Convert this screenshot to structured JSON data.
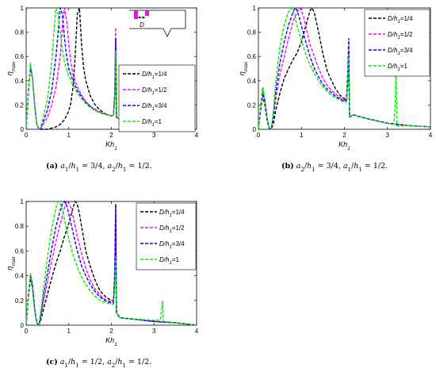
{
  "chart_data": [
    {
      "type": "line",
      "panel_label": "(a)",
      "caption": "a1/h1 = 3/4, a2/h1 = 1/2.",
      "xlabel": "Kh1",
      "ylabel": "ηmax",
      "xlim": [
        0,
        4
      ],
      "ylim": [
        0,
        1
      ],
      "xticks": [
        "0",
        "1",
        "2",
        "3",
        "4"
      ],
      "yticks": [
        "0",
        "0.2",
        "0.4",
        "0.6",
        "0.8",
        "1"
      ],
      "legend_position": "right",
      "inset": {
        "label": "D",
        "shown": true
      },
      "series": [
        {
          "name": "D/h1=1/4",
          "color": "#000000",
          "x": [
            0,
            0.05,
            0.1,
            0.15,
            0.2,
            0.25,
            0.3,
            0.35,
            0.4,
            0.5,
            0.6,
            0.7,
            0.8,
            0.9,
            1.0,
            1.05,
            1.1,
            1.15,
            1.2,
            1.25,
            1.3,
            1.35,
            1.4,
            1.5,
            1.6,
            1.7,
            1.8,
            1.9,
            2.0,
            2.05,
            2.08,
            2.1,
            2.12,
            2.2,
            2.5,
            3.0,
            3.15,
            3.2,
            3.25,
            3.5,
            4.0
          ],
          "y": [
            0,
            0.3,
            0.5,
            0.42,
            0.2,
            0.04,
            0.0,
            0.0,
            0.0,
            0.0,
            0.01,
            0.02,
            0.04,
            0.08,
            0.15,
            0.22,
            0.35,
            0.6,
            0.95,
            1.0,
            0.7,
            0.5,
            0.4,
            0.28,
            0.21,
            0.17,
            0.14,
            0.12,
            0.11,
            0.12,
            0.25,
            0.74,
            0.1,
            0.08,
            0.06,
            0.04,
            0.04,
            0.06,
            0.03,
            0.02,
            0.0
          ]
        },
        {
          "name": "D/h1=1/2",
          "color": "#ff00ff",
          "x": [
            0,
            0.05,
            0.1,
            0.15,
            0.2,
            0.25,
            0.3,
            0.35,
            0.4,
            0.5,
            0.6,
            0.7,
            0.8,
            0.85,
            0.9,
            0.95,
            1.0,
            1.05,
            1.1,
            1.2,
            1.3,
            1.4,
            1.5,
            1.6,
            1.7,
            1.8,
            1.9,
            2.0,
            2.05,
            2.08,
            2.1,
            2.12,
            2.2,
            2.5,
            3.0,
            3.15,
            3.2,
            3.25,
            3.5,
            4.0
          ],
          "y": [
            0,
            0.3,
            0.52,
            0.42,
            0.2,
            0.04,
            0.0,
            0.01,
            0.04,
            0.1,
            0.2,
            0.35,
            0.6,
            0.85,
            1.0,
            0.9,
            0.7,
            0.55,
            0.45,
            0.35,
            0.28,
            0.23,
            0.19,
            0.17,
            0.15,
            0.13,
            0.12,
            0.11,
            0.12,
            0.3,
            0.84,
            0.1,
            0.08,
            0.06,
            0.04,
            0.04,
            0.08,
            0.03,
            0.02,
            0.0
          ]
        },
        {
          "name": "D/h1=3/4",
          "color": "#0000ff",
          "x": [
            0,
            0.05,
            0.1,
            0.15,
            0.2,
            0.25,
            0.3,
            0.35,
            0.4,
            0.5,
            0.6,
            0.7,
            0.75,
            0.8,
            0.85,
            0.9,
            0.95,
            1.0,
            1.1,
            1.2,
            1.3,
            1.4,
            1.5,
            1.6,
            1.7,
            1.8,
            1.9,
            2.0,
            2.05,
            2.08,
            2.1,
            2.12,
            2.2,
            2.5,
            3.0,
            3.15,
            3.2,
            3.25,
            3.5,
            4.0
          ],
          "y": [
            0,
            0.3,
            0.53,
            0.42,
            0.2,
            0.04,
            0.0,
            0.02,
            0.06,
            0.16,
            0.32,
            0.6,
            0.8,
            1.0,
            0.95,
            0.75,
            0.6,
            0.5,
            0.4,
            0.32,
            0.27,
            0.22,
            0.19,
            0.16,
            0.14,
            0.13,
            0.12,
            0.11,
            0.12,
            0.3,
            0.75,
            0.1,
            0.08,
            0.06,
            0.04,
            0.04,
            0.08,
            0.03,
            0.02,
            0.0
          ]
        },
        {
          "name": "D/h1=1",
          "color": "#00ee00",
          "x": [
            0,
            0.05,
            0.1,
            0.15,
            0.2,
            0.25,
            0.3,
            0.35,
            0.4,
            0.5,
            0.6,
            0.65,
            0.7,
            0.75,
            0.8,
            0.85,
            0.9,
            1.0,
            1.1,
            1.2,
            1.3,
            1.4,
            1.5,
            1.6,
            1.7,
            1.8,
            1.9,
            2.0,
            2.05,
            2.08,
            2.1,
            2.12,
            2.2,
            2.5,
            3.0,
            3.15,
            3.2,
            3.25,
            3.5,
            4.0
          ],
          "y": [
            0,
            0.3,
            0.55,
            0.42,
            0.2,
            0.04,
            0.0,
            0.03,
            0.1,
            0.25,
            0.55,
            0.8,
            1.0,
            0.95,
            0.8,
            0.65,
            0.55,
            0.44,
            0.36,
            0.3,
            0.25,
            0.21,
            0.18,
            0.16,
            0.14,
            0.13,
            0.12,
            0.11,
            0.12,
            0.25,
            0.65,
            0.1,
            0.08,
            0.06,
            0.04,
            0.04,
            0.1,
            0.03,
            0.02,
            0.0
          ]
        }
      ]
    },
    {
      "type": "line",
      "panel_label": "(b)",
      "caption": "a2/h1 = 3/4, a1/h1 = 1/2.",
      "xlabel": "Kh1",
      "ylabel": "ηmax",
      "xlim": [
        0,
        4
      ],
      "ylim": [
        0,
        1
      ],
      "xticks": [
        "0",
        "1",
        "2",
        "3",
        "4"
      ],
      "yticks": [
        "0",
        "0.2",
        "0.4",
        "0.6",
        "0.8",
        "1"
      ],
      "legend_position": "top-right",
      "series": [
        {
          "name": "D/h1=1/4",
          "color": "#000000",
          "x": [
            0,
            0.05,
            0.1,
            0.15,
            0.2,
            0.25,
            0.3,
            0.35,
            0.4,
            0.5,
            0.6,
            0.7,
            0.8,
            0.9,
            1.0,
            1.1,
            1.2,
            1.25,
            1.3,
            1.35,
            1.4,
            1.5,
            1.6,
            1.7,
            1.8,
            1.9,
            2.0,
            2.05,
            2.08,
            2.1,
            2.12,
            2.2,
            2.5,
            3.0,
            3.5,
            4.0
          ],
          "y": [
            0,
            0.15,
            0.28,
            0.2,
            0.08,
            0.01,
            0.0,
            0.05,
            0.15,
            0.3,
            0.42,
            0.5,
            0.57,
            0.63,
            0.72,
            0.85,
            0.98,
            1.0,
            0.96,
            0.88,
            0.8,
            0.62,
            0.48,
            0.4,
            0.33,
            0.28,
            0.25,
            0.26,
            0.4,
            0.55,
            0.1,
            0.12,
            0.09,
            0.05,
            0.03,
            0.02
          ]
        },
        {
          "name": "D/h1=1/2",
          "color": "#ff00ff",
          "x": [
            0,
            0.05,
            0.1,
            0.15,
            0.2,
            0.25,
            0.3,
            0.35,
            0.4,
            0.5,
            0.6,
            0.7,
            0.8,
            0.9,
            0.95,
            1.0,
            1.05,
            1.1,
            1.2,
            1.3,
            1.4,
            1.5,
            1.6,
            1.7,
            1.8,
            1.9,
            2.0,
            2.05,
            2.08,
            2.1,
            2.12,
            2.2,
            2.5,
            3.0,
            3.5,
            4.0
          ],
          "y": [
            0,
            0.17,
            0.3,
            0.22,
            0.08,
            0.01,
            0.0,
            0.1,
            0.25,
            0.45,
            0.6,
            0.75,
            0.88,
            0.97,
            1.0,
            0.98,
            0.93,
            0.85,
            0.7,
            0.6,
            0.5,
            0.42,
            0.36,
            0.32,
            0.29,
            0.26,
            0.24,
            0.25,
            0.45,
            0.65,
            0.1,
            0.12,
            0.09,
            0.05,
            0.03,
            0.02
          ]
        },
        {
          "name": "D/h1=3/4",
          "color": "#0000ff",
          "x": [
            0,
            0.05,
            0.1,
            0.15,
            0.2,
            0.25,
            0.3,
            0.35,
            0.4,
            0.5,
            0.6,
            0.7,
            0.8,
            0.85,
            0.9,
            0.95,
            1.0,
            1.1,
            1.2,
            1.3,
            1.4,
            1.5,
            1.6,
            1.7,
            1.8,
            1.9,
            2.0,
            2.05,
            2.08,
            2.1,
            2.12,
            2.2,
            2.5,
            3.0,
            3.5,
            4.0
          ],
          "y": [
            0,
            0.18,
            0.32,
            0.23,
            0.09,
            0.01,
            0.0,
            0.12,
            0.3,
            0.55,
            0.72,
            0.86,
            0.96,
            1.0,
            0.98,
            0.92,
            0.85,
            0.72,
            0.6,
            0.5,
            0.43,
            0.37,
            0.33,
            0.3,
            0.27,
            0.25,
            0.23,
            0.24,
            0.5,
            0.75,
            0.1,
            0.12,
            0.09,
            0.05,
            0.03,
            0.02
          ]
        },
        {
          "name": "D/h1=1",
          "color": "#00ee00",
          "x": [
            0,
            0.05,
            0.1,
            0.15,
            0.2,
            0.25,
            0.3,
            0.35,
            0.4,
            0.5,
            0.6,
            0.7,
            0.75,
            0.8,
            0.85,
            0.9,
            1.0,
            1.1,
            1.2,
            1.3,
            1.4,
            1.5,
            1.6,
            1.7,
            1.8,
            1.9,
            2.0,
            2.05,
            2.08,
            2.1,
            2.12,
            2.2,
            2.5,
            3.0,
            3.15,
            3.18,
            3.2,
            3.22,
            3.5,
            4.0
          ],
          "y": [
            0,
            0.2,
            0.35,
            0.25,
            0.1,
            0.01,
            0.0,
            0.15,
            0.38,
            0.68,
            0.86,
            0.97,
            1.0,
            0.98,
            0.93,
            0.85,
            0.73,
            0.62,
            0.53,
            0.46,
            0.4,
            0.35,
            0.31,
            0.28,
            0.26,
            0.24,
            0.22,
            0.23,
            0.4,
            0.6,
            0.1,
            0.12,
            0.09,
            0.05,
            0.04,
            0.2,
            0.52,
            0.03,
            0.03,
            0.02
          ]
        }
      ]
    },
    {
      "type": "line",
      "panel_label": "(c)",
      "caption": "a1/h1 = 1/2, a2/h1 = 1/2.",
      "xlabel": "Kh1",
      "ylabel": "ηmax",
      "xlim": [
        0,
        4
      ],
      "ylim": [
        0,
        1
      ],
      "xticks": [
        "0",
        "1",
        "2",
        "3",
        "4"
      ],
      "yticks": [
        "0",
        "0.2",
        "0.4",
        "0.6",
        "0.8",
        "1"
      ],
      "legend_position": "top-right",
      "series": [
        {
          "name": "D/h1=1/4",
          "color": "#000000",
          "x": [
            0,
            0.05,
            0.1,
            0.15,
            0.2,
            0.25,
            0.3,
            0.35,
            0.4,
            0.5,
            0.6,
            0.7,
            0.8,
            0.9,
            1.0,
            1.1,
            1.15,
            1.2,
            1.25,
            1.3,
            1.35,
            1.4,
            1.5,
            1.6,
            1.7,
            1.8,
            1.9,
            2.0,
            2.05,
            2.08,
            2.1,
            2.12,
            2.2,
            2.5,
            3.0,
            3.5,
            4.0
          ],
          "y": [
            0,
            0.22,
            0.38,
            0.3,
            0.12,
            0.02,
            0.0,
            0.05,
            0.12,
            0.25,
            0.38,
            0.5,
            0.6,
            0.72,
            0.82,
            0.95,
            1.0,
            0.98,
            0.9,
            0.8,
            0.7,
            0.6,
            0.48,
            0.38,
            0.3,
            0.25,
            0.22,
            0.2,
            0.2,
            0.4,
            0.98,
            0.1,
            0.06,
            0.05,
            0.03,
            0.02,
            0.0
          ]
        },
        {
          "name": "D/h1=1/2",
          "color": "#ff00ff",
          "x": [
            0,
            0.05,
            0.1,
            0.15,
            0.2,
            0.25,
            0.3,
            0.35,
            0.4,
            0.5,
            0.6,
            0.7,
            0.8,
            0.9,
            0.95,
            1.0,
            1.05,
            1.1,
            1.2,
            1.3,
            1.4,
            1.5,
            1.6,
            1.7,
            1.8,
            1.9,
            2.0,
            2.05,
            2.08,
            2.1,
            2.12,
            2.2,
            2.5,
            3.0,
            3.5,
            4.0
          ],
          "y": [
            0,
            0.24,
            0.4,
            0.32,
            0.12,
            0.02,
            0.0,
            0.08,
            0.18,
            0.35,
            0.52,
            0.68,
            0.82,
            0.95,
            1.0,
            0.99,
            0.95,
            0.88,
            0.72,
            0.58,
            0.46,
            0.37,
            0.3,
            0.26,
            0.22,
            0.2,
            0.19,
            0.19,
            0.4,
            0.95,
            0.1,
            0.06,
            0.05,
            0.03,
            0.02,
            0.0
          ]
        },
        {
          "name": "D/h1=3/4",
          "color": "#0000ff",
          "x": [
            0,
            0.05,
            0.1,
            0.15,
            0.2,
            0.25,
            0.3,
            0.35,
            0.4,
            0.5,
            0.6,
            0.7,
            0.8,
            0.85,
            0.9,
            0.95,
            1.0,
            1.1,
            1.2,
            1.3,
            1.4,
            1.5,
            1.6,
            1.7,
            1.8,
            1.9,
            2.0,
            2.05,
            2.08,
            2.1,
            2.12,
            2.2,
            2.5,
            3.0,
            3.5,
            4.0
          ],
          "y": [
            0,
            0.25,
            0.41,
            0.32,
            0.13,
            0.02,
            0.0,
            0.1,
            0.22,
            0.42,
            0.62,
            0.8,
            0.93,
            0.98,
            1.0,
            0.97,
            0.9,
            0.75,
            0.6,
            0.48,
            0.4,
            0.33,
            0.28,
            0.24,
            0.21,
            0.19,
            0.18,
            0.18,
            0.45,
            0.98,
            0.1,
            0.06,
            0.05,
            0.03,
            0.02,
            0.0
          ]
        },
        {
          "name": "D/h1=1",
          "color": "#00ee00",
          "x": [
            0,
            0.05,
            0.1,
            0.15,
            0.2,
            0.25,
            0.3,
            0.35,
            0.4,
            0.5,
            0.6,
            0.7,
            0.75,
            0.8,
            0.85,
            0.9,
            1.0,
            1.1,
            1.2,
            1.3,
            1.4,
            1.5,
            1.6,
            1.7,
            1.8,
            1.9,
            2.0,
            2.05,
            2.08,
            2.1,
            2.12,
            2.2,
            2.5,
            3.0,
            3.15,
            3.18,
            3.2,
            3.22,
            3.5,
            4.0
          ],
          "y": [
            0,
            0.26,
            0.42,
            0.33,
            0.13,
            0.02,
            0.0,
            0.12,
            0.28,
            0.55,
            0.78,
            0.95,
            1.0,
            0.98,
            0.93,
            0.85,
            0.7,
            0.57,
            0.47,
            0.39,
            0.33,
            0.28,
            0.24,
            0.21,
            0.19,
            0.18,
            0.17,
            0.17,
            0.3,
            0.55,
            0.1,
            0.06,
            0.05,
            0.04,
            0.04,
            0.12,
            0.2,
            0.03,
            0.02,
            0.0
          ]
        }
      ]
    }
  ]
}
